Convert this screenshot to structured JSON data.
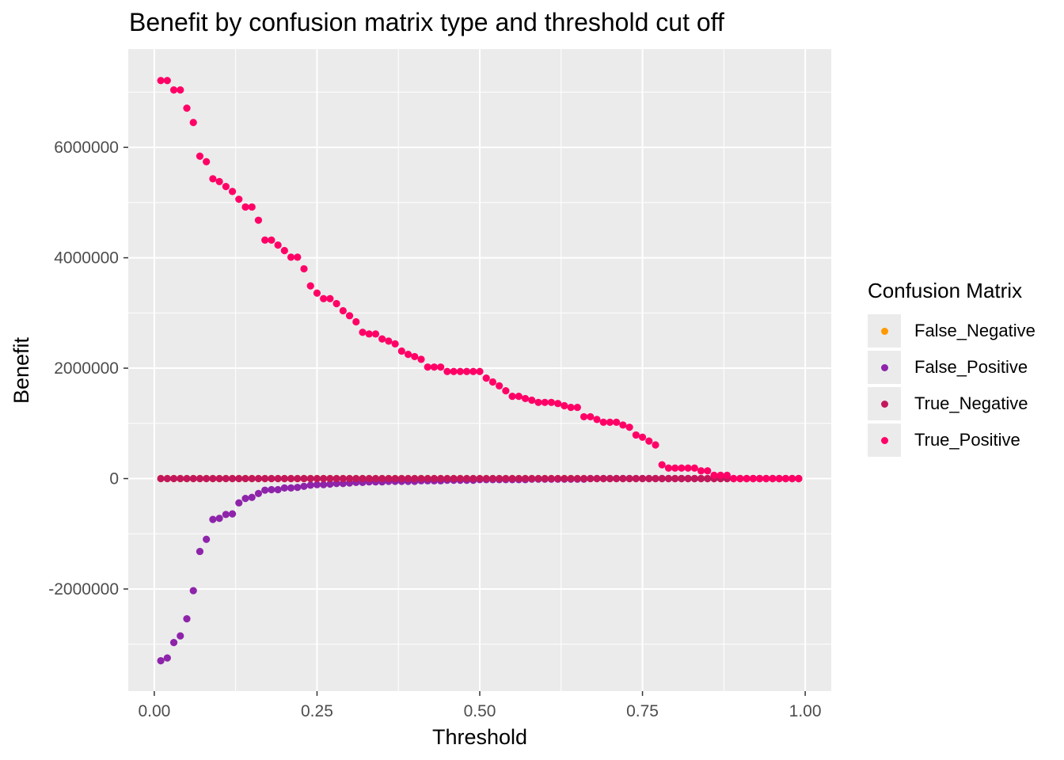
{
  "chart_data": {
    "type": "scatter",
    "title": "Benefit by confusion matrix type and threshold cut off",
    "xlabel": "Threshold",
    "ylabel": "Benefit",
    "xlim": [
      -0.04,
      1.04
    ],
    "ylim": [
      -3850000,
      7780000
    ],
    "x_ticks": [
      0,
      0.25,
      0.5,
      0.75,
      1.0
    ],
    "x_tick_labels": [
      "0.00",
      "0.25",
      "0.50",
      "0.75",
      "1.00"
    ],
    "y_ticks": [
      -2000000,
      0,
      2000000,
      4000000,
      6000000
    ],
    "y_tick_labels": [
      "-2000000",
      "0",
      "2000000",
      "4000000",
      "6000000"
    ],
    "grid": true,
    "legend_title": "Confusion Matrix",
    "legend_position": "right",
    "x": [
      0.01,
      0.02,
      0.03,
      0.04,
      0.05,
      0.06,
      0.07,
      0.08,
      0.09,
      0.1,
      0.11,
      0.12,
      0.13,
      0.14,
      0.15,
      0.16,
      0.17,
      0.18,
      0.19,
      0.2,
      0.21,
      0.22,
      0.23,
      0.24,
      0.25,
      0.26,
      0.27,
      0.28,
      0.29,
      0.3,
      0.31,
      0.32,
      0.33,
      0.34,
      0.35,
      0.36,
      0.37,
      0.38,
      0.39,
      0.4,
      0.41,
      0.42,
      0.43,
      0.44,
      0.45,
      0.46,
      0.47,
      0.48,
      0.49,
      0.5,
      0.51,
      0.52,
      0.53,
      0.54,
      0.55,
      0.56,
      0.57,
      0.58,
      0.59,
      0.6,
      0.61,
      0.62,
      0.63,
      0.64,
      0.65,
      0.66,
      0.67,
      0.68,
      0.69,
      0.7,
      0.71,
      0.72,
      0.73,
      0.74,
      0.75,
      0.76,
      0.77,
      0.78,
      0.79,
      0.8,
      0.81,
      0.82,
      0.83,
      0.84,
      0.85,
      0.86,
      0.87,
      0.88,
      0.89,
      0.9,
      0.91,
      0.92,
      0.93,
      0.94,
      0.95,
      0.96,
      0.97,
      0.98,
      0.99
    ],
    "series": [
      {
        "name": "False_Negative",
        "color": "#FF9900",
        "values": [
          0,
          0,
          0,
          0,
          0,
          0,
          0,
          0,
          0,
          0,
          0,
          0,
          0,
          0,
          0,
          0,
          0,
          0,
          0,
          0,
          0,
          0,
          0,
          0,
          0,
          0,
          0,
          0,
          0,
          0,
          0,
          0,
          0,
          0,
          0,
          0,
          0,
          0,
          0,
          0,
          0,
          0,
          0,
          0,
          0,
          0,
          0,
          0,
          0,
          0,
          0,
          0,
          0,
          0,
          0,
          0,
          0,
          0,
          0,
          0,
          0,
          0,
          0,
          0,
          0,
          0,
          0,
          0,
          0,
          0,
          0,
          0,
          0,
          0,
          0,
          0,
          0,
          0,
          0,
          0,
          0,
          0,
          0,
          0,
          0,
          0,
          0,
          0,
          0,
          0,
          0,
          0,
          0,
          0,
          0,
          0,
          0,
          0,
          0
        ]
      },
      {
        "name": "False_Positive",
        "color": "#8E24AA",
        "values": [
          -3300000,
          -3250000,
          -2970000,
          -2850000,
          -2540000,
          -2030000,
          -1320000,
          -1100000,
          -740000,
          -720000,
          -650000,
          -640000,
          -440000,
          -360000,
          -340000,
          -270000,
          -210000,
          -200000,
          -200000,
          -170000,
          -170000,
          -160000,
          -140000,
          -120000,
          -110000,
          -110000,
          -100000,
          -90000,
          -90000,
          -80000,
          -70000,
          -70000,
          -60000,
          -60000,
          -60000,
          -50000,
          -50000,
          -50000,
          -50000,
          -50000,
          -40000,
          -40000,
          -40000,
          -40000,
          -30000,
          -30000,
          -30000,
          -30000,
          -30000,
          -20000,
          -20000,
          -20000,
          -20000,
          -20000,
          -20000,
          -20000,
          -20000,
          -10000,
          -10000,
          -10000,
          -10000,
          -10000,
          -10000,
          -10000,
          -10000,
          -10000,
          0,
          0,
          0,
          0,
          0,
          0,
          0,
          0,
          0,
          0,
          0,
          0,
          0,
          0,
          0,
          0,
          0,
          0,
          0,
          0,
          0,
          0,
          0,
          0,
          0,
          0,
          0,
          0,
          0,
          0,
          0,
          0,
          0
        ]
      },
      {
        "name": "True_Negative",
        "color": "#C2185B",
        "values": [
          0,
          0,
          0,
          0,
          0,
          0,
          0,
          0,
          0,
          0,
          0,
          0,
          0,
          0,
          0,
          0,
          0,
          0,
          0,
          0,
          0,
          0,
          0,
          0,
          0,
          0,
          0,
          0,
          0,
          0,
          0,
          0,
          0,
          0,
          0,
          0,
          0,
          0,
          0,
          0,
          0,
          0,
          0,
          0,
          0,
          0,
          0,
          0,
          0,
          0,
          0,
          0,
          0,
          0,
          0,
          0,
          0,
          0,
          0,
          0,
          0,
          0,
          0,
          0,
          0,
          0,
          0,
          0,
          0,
          0,
          0,
          0,
          0,
          0,
          0,
          0,
          0,
          0,
          0,
          0,
          0,
          0,
          0,
          0,
          0,
          0,
          0,
          0,
          0,
          0,
          0,
          0,
          0,
          0,
          0,
          0,
          0,
          0,
          0
        ]
      },
      {
        "name": "True_Positive",
        "color": "#FF0066",
        "values": [
          7210000,
          7210000,
          7040000,
          7040000,
          6710000,
          6450000,
          5840000,
          5740000,
          5430000,
          5380000,
          5290000,
          5200000,
          5060000,
          4920000,
          4920000,
          4680000,
          4320000,
          4320000,
          4230000,
          4130000,
          4010000,
          4010000,
          3800000,
          3490000,
          3360000,
          3260000,
          3260000,
          3170000,
          3040000,
          2950000,
          2840000,
          2650000,
          2620000,
          2620000,
          2530000,
          2490000,
          2440000,
          2310000,
          2250000,
          2210000,
          2160000,
          2020000,
          2020000,
          2020000,
          1940000,
          1940000,
          1940000,
          1940000,
          1940000,
          1940000,
          1820000,
          1750000,
          1680000,
          1590000,
          1490000,
          1490000,
          1450000,
          1420000,
          1380000,
          1380000,
          1380000,
          1360000,
          1320000,
          1290000,
          1290000,
          1120000,
          1120000,
          1070000,
          1020000,
          1020000,
          1020000,
          970000,
          930000,
          790000,
          750000,
          680000,
          610000,
          250000,
          190000,
          190000,
          190000,
          190000,
          190000,
          140000,
          140000,
          60000,
          60000,
          60000,
          0,
          0,
          0,
          0,
          0,
          0,
          0,
          0,
          0,
          0,
          0
        ]
      }
    ]
  }
}
